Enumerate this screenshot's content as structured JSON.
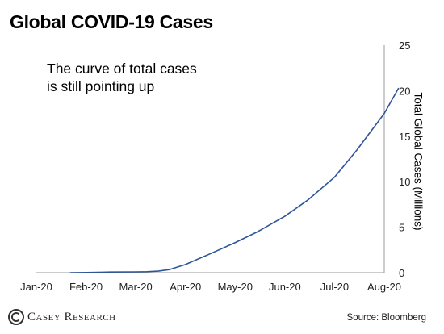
{
  "title": "Global COVID-19 Cases",
  "annotation_lines": [
    "The curve of total cases",
    "is still pointing up"
  ],
  "source": "Source: Bloomberg",
  "brand": "Casey Research",
  "colors": {
    "line": "#2f5597"
  },
  "chart_data": {
    "type": "line",
    "title": "Global COVID-19 Cases",
    "xlabel": "",
    "ylabel": "Total Global Cases (Millions)",
    "y_axis_side": "right",
    "ylim": [
      0,
      25
    ],
    "yticks": [
      0,
      5,
      10,
      15,
      20,
      25
    ],
    "xticks": [
      "Jan-20",
      "Feb-20",
      "Mar-20",
      "Apr-20",
      "May-20",
      "Jun-20",
      "Jul-20",
      "Aug-20"
    ],
    "grid": false,
    "series": [
      {
        "x": [
          "2020-01-22",
          "2020-02-01",
          "2020-02-15",
          "2020-03-01",
          "2020-03-08",
          "2020-03-15",
          "2020-03-22",
          "2020-04-01",
          "2020-04-15",
          "2020-05-01",
          "2020-05-15",
          "2020-06-01",
          "2020-06-15",
          "2020-07-01",
          "2020-07-15",
          "2020-08-01",
          "2020-08-10"
        ],
        "y": [
          0.0006,
          0.012,
          0.069,
          0.089,
          0.11,
          0.17,
          0.34,
          0.9,
          2.0,
          3.3,
          4.5,
          6.2,
          8.0,
          10.5,
          13.5,
          17.5,
          20.3
        ]
      }
    ]
  }
}
